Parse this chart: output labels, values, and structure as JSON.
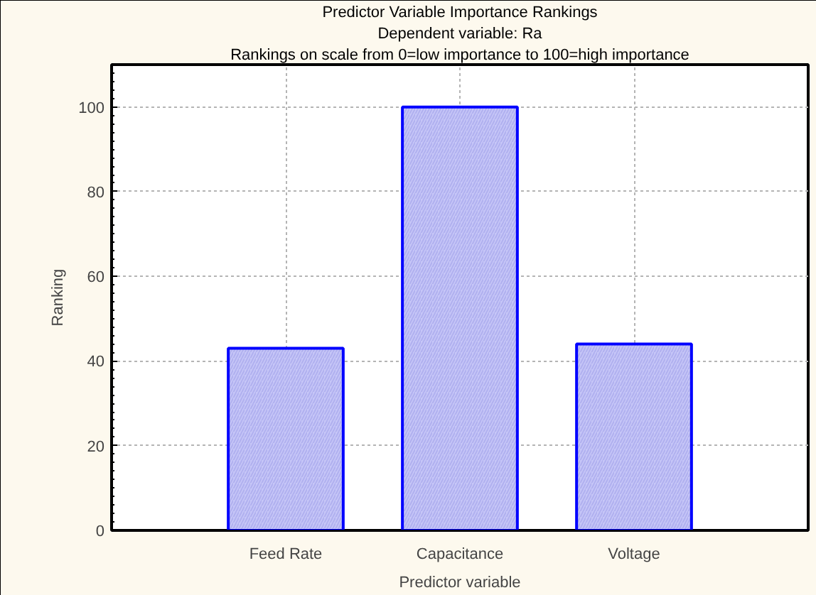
{
  "chart_data": {
    "type": "bar",
    "title": "Predictor Variable Importance Rankings",
    "subtitle": "Dependent variable: Ra",
    "annotations": [
      "Rankings on scale from 0=low importance to 100=high importance"
    ],
    "xlabel": "Predictor variable",
    "ylabel": "Ranking",
    "categories": [
      "Feed Rate",
      "Capacitance",
      "Voltage"
    ],
    "values": [
      43,
      100,
      44
    ],
    "color": "#c6c6f7",
    "ylim": [
      0,
      110
    ],
    "yticks": [
      0,
      20,
      40,
      60,
      80,
      100
    ],
    "grid": true
  }
}
